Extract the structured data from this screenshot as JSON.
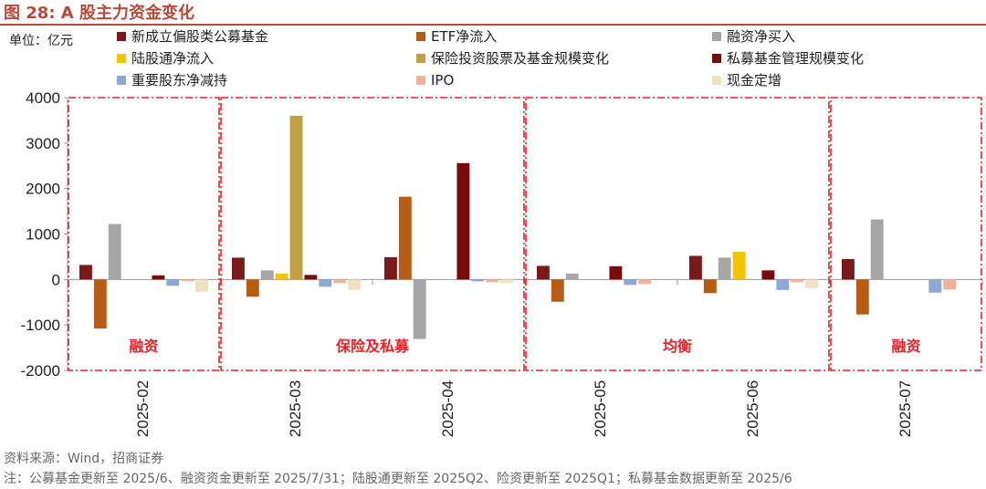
{
  "header": {
    "title": "图 28: A 股主力资金变化",
    "unit": "单位：亿元"
  },
  "footer": {
    "source": "资料来源：Wind，招商证券",
    "note": "注：公募基金更新至 2025/6、融资资金更新至 2025/7/31；陆股通更新至 2025Q2、险资更新至 2025Q1；私募基金数据更新至 2025/6"
  },
  "colors": {
    "新成立偏股类公募基金": "#7b1a1a",
    "ETF净流入": "#b85c14",
    "融资净买入": "#a6a6a6",
    "陆股通净流入": "#f5c400",
    "保险投资股票及基金规模变化": "#c0a040",
    "私募基金管理规模变化": "#7a0a0a",
    "重要股东净减持": "#8ea8d8",
    "IPO": "#f2b29a",
    "现金定增": "#ede2c2",
    "box": "#e8202a"
  },
  "chart_data": {
    "type": "bar",
    "categories": [
      "2025-02",
      "2025-03",
      "2025-04",
      "2025-05",
      "2025-06",
      "2025-07"
    ],
    "ylim": [
      -2000,
      4000
    ],
    "yticks": [
      -2000,
      -1000,
      0,
      1000,
      2000,
      3000,
      4000
    ],
    "legend_position": "top",
    "series": [
      {
        "name": "新成立偏股类公募基金",
        "values": [
          320,
          480,
          490,
          300,
          520,
          450
        ]
      },
      {
        "name": "ETF净流入",
        "values": [
          -1080,
          -380,
          1820,
          -490,
          -300,
          -770
        ]
      },
      {
        "name": "融资净买入",
        "values": [
          1220,
          200,
          -1310,
          130,
          480,
          1320
        ]
      },
      {
        "name": "陆股通净流入",
        "values": [
          null,
          130,
          null,
          null,
          610,
          null
        ]
      },
      {
        "name": "保险投资股票及基金规模变化",
        "values": [
          null,
          3600,
          null,
          null,
          null,
          null
        ]
      },
      {
        "name": "私募基金管理规模变化",
        "values": [
          90,
          100,
          2560,
          290,
          200,
          null
        ]
      },
      {
        "name": "重要股东净减持",
        "values": [
          -140,
          -160,
          -40,
          -120,
          -230,
          -290
        ]
      },
      {
        "name": "IPO",
        "values": [
          -40,
          -80,
          -60,
          -100,
          -60,
          -220
        ]
      },
      {
        "name": "现金定增",
        "values": [
          -270,
          -230,
          -80,
          null,
          -190,
          null
        ]
      }
    ],
    "annotations": [
      {
        "label": "融资",
        "from": 0,
        "to": 0
      },
      {
        "label": "保险及私募",
        "from": 1,
        "to": 2
      },
      {
        "label": "均衡",
        "from": 3,
        "to": 4
      },
      {
        "label": "融资",
        "from": 5,
        "to": 5
      }
    ]
  }
}
